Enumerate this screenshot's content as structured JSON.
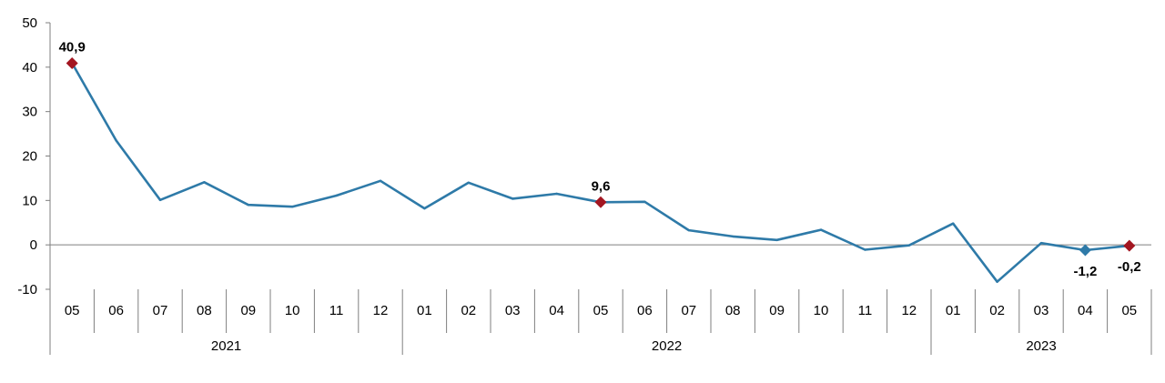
{
  "chart_data": {
    "type": "line",
    "title": "",
    "xlabel": "",
    "ylabel": "",
    "ylim": [
      -10,
      50
    ],
    "yticks": [
      -10,
      0,
      10,
      20,
      30,
      40,
      50
    ],
    "grid": false,
    "legend": "none",
    "categories": [
      "05",
      "06",
      "07",
      "08",
      "09",
      "10",
      "11",
      "12",
      "01",
      "02",
      "03",
      "04",
      "05",
      "06",
      "07",
      "08",
      "09",
      "10",
      "11",
      "12",
      "01",
      "02",
      "03",
      "04",
      "05"
    ],
    "groups": [
      {
        "label": "2021",
        "count": 8
      },
      {
        "label": "2022",
        "count": 12
      },
      {
        "label": "2023",
        "count": 5
      }
    ],
    "series": [
      {
        "values": [
          40.9,
          23.5,
          10.1,
          14.1,
          9.0,
          8.6,
          11.1,
          14.4,
          8.2,
          14.0,
          10.4,
          11.5,
          9.6,
          9.7,
          3.3,
          1.9,
          1.1,
          3.4,
          -1.1,
          -0.1,
          4.8,
          -8.3,
          0.4,
          -1.2,
          -0.2
        ],
        "color": "#2e7aa8"
      }
    ],
    "highlights": [
      {
        "index": 0,
        "label": "40,9",
        "color": "#a31621"
      },
      {
        "index": 12,
        "label": "9,6",
        "color": "#a31621"
      },
      {
        "index": 23,
        "label": "-1,2",
        "color": "#2e7aa8"
      },
      {
        "index": 24,
        "label": "-0,2",
        "color": "#a31621"
      }
    ]
  }
}
